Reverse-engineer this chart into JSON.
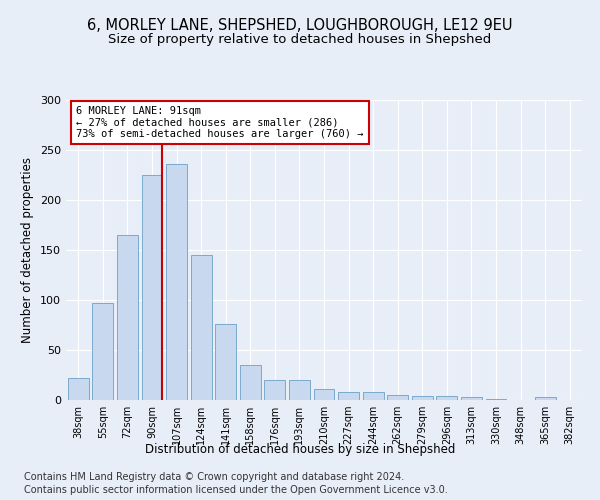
{
  "title1": "6, MORLEY LANE, SHEPSHED, LOUGHBOROUGH, LE12 9EU",
  "title2": "Size of property relative to detached houses in Shepshed",
  "xlabel": "Distribution of detached houses by size in Shepshed",
  "ylabel": "Number of detached properties",
  "categories": [
    "38sqm",
    "55sqm",
    "72sqm",
    "90sqm",
    "107sqm",
    "124sqm",
    "141sqm",
    "158sqm",
    "176sqm",
    "193sqm",
    "210sqm",
    "227sqm",
    "244sqm",
    "262sqm",
    "279sqm",
    "296sqm",
    "313sqm",
    "330sqm",
    "348sqm",
    "365sqm",
    "382sqm"
  ],
  "values": [
    22,
    97,
    165,
    225,
    236,
    145,
    76,
    35,
    20,
    20,
    11,
    8,
    8,
    5,
    4,
    4,
    3,
    1,
    0,
    3,
    0
  ],
  "bar_color": "#c8d8ee",
  "bar_edge_color": "#7aaacc",
  "vline_color": "#cc0000",
  "ylim": [
    0,
    300
  ],
  "yticks": [
    0,
    50,
    100,
    150,
    200,
    250,
    300
  ],
  "annotation_text": "6 MORLEY LANE: 91sqm\n← 27% of detached houses are smaller (286)\n73% of semi-detached houses are larger (760) →",
  "annotation_box_color": "#ffffff",
  "annotation_box_edge": "#cc0000",
  "footer1": "Contains HM Land Registry data © Crown copyright and database right 2024.",
  "footer2": "Contains public sector information licensed under the Open Government Licence v3.0.",
  "bg_color": "#e8eef8",
  "plot_bg_color": "#e8eef8",
  "title1_fontsize": 10.5,
  "title2_fontsize": 9.5,
  "xlabel_fontsize": 8.5,
  "ylabel_fontsize": 8.5,
  "footer_fontsize": 7,
  "tick_fontsize": 7,
  "vline_bar_index": 3
}
